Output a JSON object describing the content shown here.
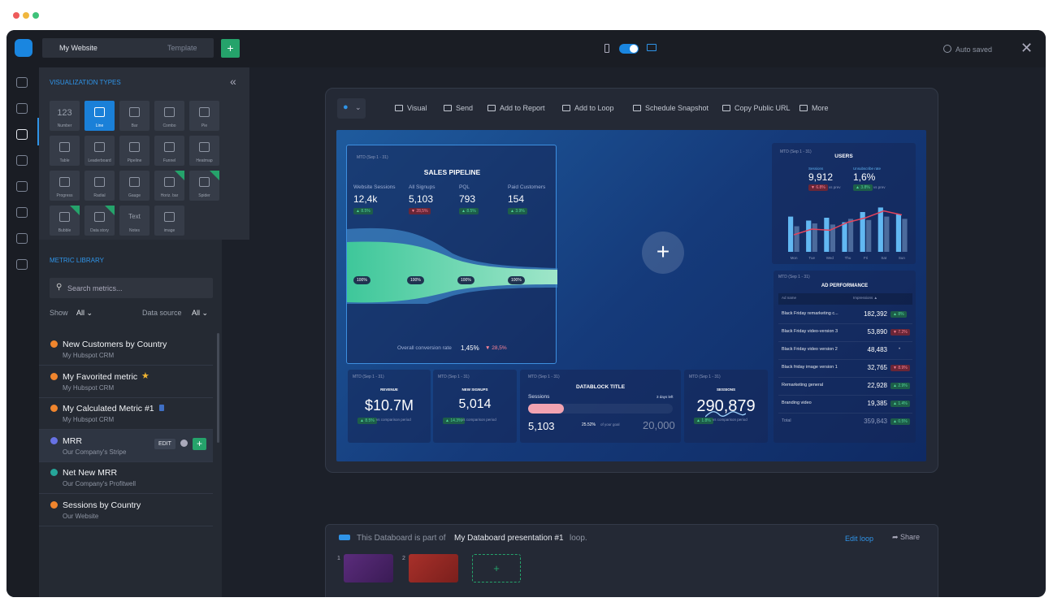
{
  "window": {
    "project": "My Website",
    "template": "Template",
    "status": "Auto saved"
  },
  "sidebar": {
    "viz_title": "VISUALIZATION TYPES",
    "viz_types": [
      {
        "label": "Number",
        "icon_text": "123"
      },
      {
        "label": "Line"
      },
      {
        "label": "Bar"
      },
      {
        "label": "Combo"
      },
      {
        "label": "Pie"
      },
      {
        "label": "Table"
      },
      {
        "label": "Leaderboard"
      },
      {
        "label": "Pipeline"
      },
      {
        "label": "Funnel"
      },
      {
        "label": "Heatmap"
      },
      {
        "label": "Progress"
      },
      {
        "label": "Radial"
      },
      {
        "label": "Gauge"
      },
      {
        "label": "Horiz. bar"
      },
      {
        "label": "Spider"
      },
      {
        "label": "Bubble"
      },
      {
        "label": "Data story"
      },
      {
        "label": "Notes",
        "icon_text": "Text"
      },
      {
        "label": "image"
      }
    ],
    "library_title": "METRIC LIBRARY",
    "search_placeholder": "Search metrics...",
    "show_label": "Show",
    "show_value": "All",
    "source_label": "Data source",
    "source_value": "All",
    "edit_button": "EDIT",
    "metrics": [
      {
        "name": "New Customers by Country",
        "source": "My Hubspot CRM"
      },
      {
        "name": "My Favorited metric",
        "source": "My Hubspot CRM"
      },
      {
        "name": "My Calculated Metric #1",
        "source": "My Hubspot CRM"
      },
      {
        "name": "MRR",
        "source": "Our Company's Stripe"
      },
      {
        "name": "Net New MRR",
        "source": "Our Company's Profitwell"
      },
      {
        "name": "Sessions by Country",
        "source": "Our Website"
      }
    ]
  },
  "toolbar": {
    "items": [
      "Visual",
      "Send",
      "Add to Report",
      "Add to Loop",
      "Schedule Snapshot",
      "Copy Public URL",
      "More"
    ]
  },
  "dashboard": {
    "pipeline": {
      "date": "MTD (Sep 1 - 31)",
      "title": "SALES PIPELINE",
      "metrics": [
        {
          "label": "Website Sessions",
          "value": "12,4k",
          "change": "▲ 8.5%"
        },
        {
          "label": "All Signups",
          "value": "5,103",
          "change": "▼ 28,5%"
        },
        {
          "label": "PQL",
          "value": "793",
          "change": "▲ 8.5%"
        },
        {
          "label": "Paid Customers",
          "value": "154",
          "change": "▲ 3.9%"
        }
      ],
      "stages": [
        "100%",
        "100%",
        "100%",
        "100%"
      ],
      "conversion_label": "Overall conversion rate",
      "conversion_value": "1,45%",
      "conversion_change": "▼ 28,5%"
    },
    "users": {
      "date": "MTD (Sep 1 - 31)",
      "title": "USERS",
      "kpis": [
        {
          "label": "Sessions",
          "value": "9,912",
          "change": "▼ 6.8%",
          "note": "vs prev"
        },
        {
          "label": "Unsubscribe rate",
          "value": "1,6%",
          "change": "▲ 3.8%",
          "note": "vs prev"
        }
      ],
      "chart": {
        "categories": [
          "Mon",
          "Tue",
          "Wed",
          "Thu",
          "Fri",
          "Sat",
          "Sun"
        ],
        "bars_a": [
          62,
          55,
          60,
          52,
          70,
          78,
          66
        ],
        "bars_b": [
          45,
          50,
          48,
          58,
          56,
          62,
          58
        ],
        "line": [
          30,
          40,
          38,
          52,
          60,
          72,
          65
        ],
        "colors": [
          "#62b8f2",
          "#4c6b9c",
          "#e2445c"
        ],
        "ylim": [
          0,
          100
        ]
      }
    },
    "ads": {
      "date": "MTD (Sep 1 - 31)",
      "title": "AD PERFORMANCE",
      "headers": [
        "Ad name",
        "Impressions ▲"
      ],
      "rows": [
        [
          "Black Friday remarketing c...",
          "182,392",
          "▲ 8%"
        ],
        [
          "Black Friday video-version 3",
          "53,890",
          "▼ 7.2%"
        ],
        [
          "Black Friday video version 2",
          "48,483",
          "•"
        ],
        [
          "Black friday image version 1",
          "32,765",
          "▼ 8.9%"
        ],
        [
          "Remarketing general",
          "22,928",
          "▲ 2.9%"
        ],
        [
          "Branding video",
          "19,385",
          "▲ 1.4%"
        ],
        [
          "Total",
          "359,843",
          "▲ 0.5%"
        ]
      ]
    },
    "revenue": {
      "date": "MTD (Sep 1 - 31)",
      "title": "REVENUE",
      "value": "$10.7M",
      "change": "▲ 8.5%",
      "note": "vs comparison period"
    },
    "signups": {
      "date": "MTD (Sep 1 - 31)",
      "title": "NEW SIGNUPS",
      "value": "5,014",
      "change": "▲ 14.3%",
      "note": "vs comparison period"
    },
    "datablock": {
      "date": "MTD (Sep 1 - 31)",
      "title": "DATABLOCK TITLE",
      "label": "Sessions",
      "days_left": "3 days left",
      "value": "5,103",
      "percent": "25.52%",
      "goal_label": "of your goal",
      "goal": "20,000"
    },
    "sessions": {
      "date": "MTD (Sep 1 - 31)",
      "title": "SESSIONS",
      "value": "290,879",
      "change": "▲ 1.8%",
      "note": "vs comparison period"
    }
  },
  "loop": {
    "prefix": "This Databoard is part of",
    "name": "My Databoard presentation #1",
    "suffix": "loop.",
    "edit": "Edit loop",
    "share": "Share",
    "slides": [
      "1",
      "2"
    ]
  }
}
